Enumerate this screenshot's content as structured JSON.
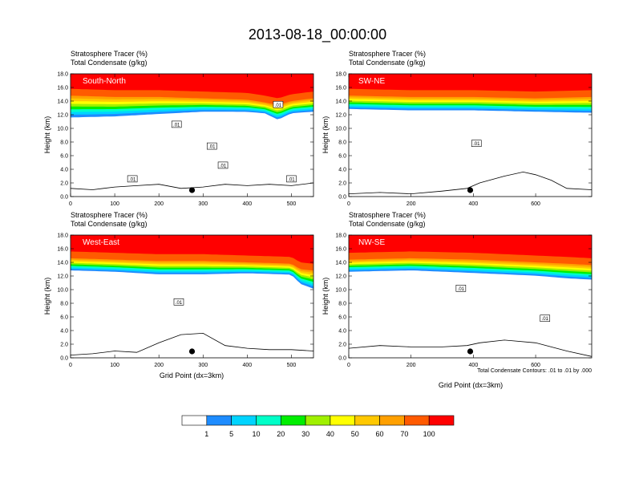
{
  "figure": {
    "title": "2013-08-18_00:00:00",
    "panel_header_line1": "Stratosphere Tracer   (%)",
    "panel_header_line2": "Total Condensate   (g/kg)",
    "ylabel": "Height (km)",
    "xlabel": "Grid Point (dx=3km)",
    "contour_note": "Total Condensate Contours: .01 to .01 by .000",
    "contour_label": ".01"
  },
  "chart_data": [
    {
      "type": "heatmap",
      "name": "South-North",
      "xlim": [
        0,
        550
      ],
      "ylim": [
        0,
        18
      ],
      "xticks": [
        0,
        100,
        200,
        300,
        400,
        500
      ],
      "yticks": [
        "0.0",
        "2.0",
        "4.0",
        "6.0",
        "8.0",
        "10.0",
        "12.0",
        "14.0",
        "16.0",
        "18.0"
      ],
      "marker_x": 275,
      "tracer_band_km": {
        "x": [
          0,
          100,
          200,
          300,
          400,
          440,
          470,
          500,
          550
        ],
        "bottom": [
          11.2,
          11.4,
          11.8,
          12.2,
          12.2,
          12.0,
          11.0,
          12.0,
          12.2
        ],
        "top": [
          14.8,
          14.6,
          14.6,
          14.4,
          14.2,
          13.8,
          13.4,
          14.0,
          14.4
        ]
      },
      "terrain_km": {
        "x": [
          0,
          50,
          100,
          150,
          200,
          250,
          300,
          350,
          400,
          450,
          500,
          550
        ],
        "y": [
          1.2,
          1.0,
          1.4,
          1.6,
          1.8,
          1.2,
          1.4,
          1.8,
          1.6,
          1.8,
          1.6,
          2.0
        ]
      },
      "contour_label_positions": [
        [
          140,
          2.6
        ],
        [
          240,
          10.6
        ],
        [
          320,
          7.4
        ],
        [
          345,
          4.6
        ],
        [
          470,
          13.5
        ],
        [
          500,
          2.6
        ]
      ]
    },
    {
      "type": "heatmap",
      "name": "SW-NE",
      "xlim": [
        0,
        780
      ],
      "ylim": [
        0,
        18
      ],
      "xticks": [
        0,
        200,
        400,
        600
      ],
      "yticks": [
        "0.0",
        "2.0",
        "4.0",
        "6.0",
        "8.0",
        "10.0",
        "12.0",
        "14.0",
        "16.0",
        "18.0"
      ],
      "marker_x": 390,
      "tracer_band_km": {
        "x": [
          0,
          200,
          400,
          600,
          780
        ],
        "bottom": [
          12.6,
          12.4,
          12.4,
          12.2,
          12.0
        ],
        "top": [
          14.8,
          14.6,
          14.6,
          14.4,
          14.6
        ]
      },
      "terrain_km": {
        "x": [
          0,
          100,
          200,
          300,
          380,
          420,
          500,
          560,
          600,
          650,
          700,
          780
        ],
        "y": [
          0.4,
          0.6,
          0.4,
          0.8,
          1.2,
          2.0,
          3.0,
          3.6,
          3.2,
          2.4,
          1.2,
          1.0
        ]
      },
      "contour_label_positions": [
        [
          410,
          7.8
        ]
      ]
    },
    {
      "type": "heatmap",
      "name": "West-East",
      "xlim": [
        0,
        550
      ],
      "ylim": [
        0,
        18
      ],
      "xticks": [
        0,
        100,
        200,
        300,
        400,
        500
      ],
      "yticks": [
        "0.0",
        "2.0",
        "4.0",
        "6.0",
        "8.0",
        "10.0",
        "12.0",
        "14.0",
        "16.0",
        "18.0"
      ],
      "marker_x": 275,
      "tracer_band_km": {
        "x": [
          0,
          100,
          200,
          300,
          400,
          500,
          520,
          550
        ],
        "bottom": [
          12.6,
          12.4,
          12.0,
          12.0,
          12.2,
          12.0,
          10.6,
          9.8
        ],
        "top": [
          14.6,
          14.4,
          14.2,
          14.2,
          14.0,
          13.8,
          13.0,
          12.8
        ]
      },
      "terrain_km": {
        "x": [
          0,
          50,
          100,
          150,
          200,
          250,
          300,
          350,
          400,
          450,
          500,
          550
        ],
        "y": [
          0.4,
          0.6,
          1.0,
          0.8,
          2.2,
          3.4,
          3.6,
          1.8,
          1.4,
          1.2,
          1.2,
          1.0
        ]
      },
      "contour_label_positions": [
        [
          245,
          8.2
        ]
      ]
    },
    {
      "type": "heatmap",
      "name": "NW-SE",
      "xlim": [
        0,
        780
      ],
      "ylim": [
        0,
        18
      ],
      "xticks": [
        0,
        200,
        400,
        600
      ],
      "yticks": [
        "0.0",
        "2.0",
        "4.0",
        "6.0",
        "8.0",
        "10.0",
        "12.0",
        "14.0",
        "16.0",
        "18.0"
      ],
      "marker_x": 390,
      "tracer_band_km": {
        "x": [
          0,
          200,
          400,
          600,
          700,
          780
        ],
        "bottom": [
          12.4,
          12.6,
          12.2,
          11.8,
          11.4,
          11.2
        ],
        "top": [
          14.4,
          14.6,
          14.4,
          14.0,
          13.8,
          13.6
        ]
      },
      "terrain_km": {
        "x": [
          0,
          100,
          200,
          300,
          380,
          420,
          500,
          600,
          650,
          700,
          780
        ],
        "y": [
          1.4,
          1.8,
          1.6,
          1.6,
          1.8,
          2.2,
          2.6,
          2.2,
          1.6,
          1.0,
          0.2
        ]
      },
      "contour_label_positions": [
        [
          360,
          10.2
        ],
        [
          630,
          5.8
        ]
      ]
    }
  ],
  "colorbar": {
    "labels": [
      "1",
      "5",
      "10",
      "20",
      "30",
      "40",
      "50",
      "60",
      "70",
      "100"
    ],
    "colors": [
      "#ffffff",
      "#1e8cff",
      "#00d4ff",
      "#00ffc8",
      "#00ee00",
      "#a0f000",
      "#ffff00",
      "#ffc800",
      "#ffa000",
      "#ff5a00",
      "#ff0000"
    ]
  }
}
